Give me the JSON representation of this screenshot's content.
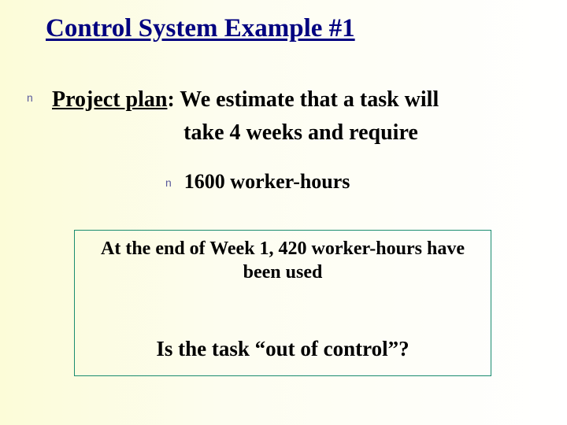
{
  "title": "Control System Example #1",
  "bullet_glyph": "n",
  "main": {
    "label": "Project plan",
    "line1_rest": ":  We estimate that a task will",
    "line2": "take 4 weeks and require"
  },
  "sub": {
    "text": "1600 worker-hours"
  },
  "box": {
    "line1": "At the end of Week 1,  420 worker-hours have been used",
    "line2": "Is the task “out of control”?",
    "border_color": "#1a8c6f"
  },
  "colors": {
    "title": "#000080",
    "bullet": "#5a5a9c",
    "text": "#000000",
    "bg_left": "#fcfcd8",
    "bg_right": "#ffffff"
  }
}
